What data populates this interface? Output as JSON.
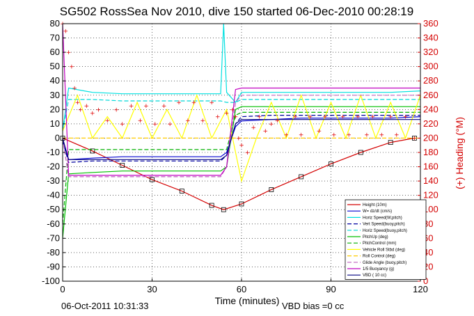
{
  "chart_data": {
    "type": "line",
    "title": "SG502 RossSea Nov 2010, dive 150 started 06-Dec-2010 00:28:19",
    "xlabel": "Time (minutes)",
    "ylabel": "",
    "y2label": "(+) Heading (°M)",
    "xlim": [
      0,
      120
    ],
    "ylim": [
      -100,
      80
    ],
    "y2lim": [
      0,
      360
    ],
    "xticks": [
      "0",
      "30",
      "60",
      "90",
      "120"
    ],
    "yticks": [
      "80",
      "70",
      "60",
      "50",
      "40",
      "30",
      "20",
      "10",
      "0",
      "-10",
      "-20",
      "-30",
      "-40",
      "-50",
      "-60",
      "-70",
      "-80",
      "-90",
      "-100"
    ],
    "y2ticks": [
      "360",
      "340",
      "320",
      "300",
      "280",
      "260",
      "240",
      "220",
      "200",
      "180",
      "160",
      "140",
      "120",
      "100",
      "80",
      "60",
      "40",
      "20",
      "0"
    ],
    "grid": true,
    "legend_position": "bottom-right",
    "footer_left": "06-Oct-2011 10:31:33",
    "footer_right": "VBD bias =0 cc",
    "colors": {
      "height": "#d40000",
      "w": "#0000d0",
      "horiz_speed": "#00e0e0",
      "vert_speed": "#0000a0",
      "horiz_speed_buoy": "#00d8d8",
      "pitch_up": "#00c000",
      "pitch_control": "#00b000",
      "roll_ctrl": "#ffff00",
      "roll_control": "#ffcc00",
      "glide_angle": "#c060c0",
      "buoyancy": "#c000c0",
      "vbd": "#000080",
      "heading": "#e00000"
    },
    "series": [
      {
        "name": "Height (10m)",
        "x": [
          0,
          10,
          20,
          30,
          40,
          50,
          54,
          60,
          70,
          80,
          90,
          100,
          110,
          118
        ],
        "values": [
          0,
          -9,
          -19,
          -29,
          -37,
          -47,
          -50,
          -46,
          -36,
          -27,
          -18,
          -10,
          -3,
          0
        ]
      },
      {
        "name": "W= dz/dt (cm/s)",
        "x": [
          0,
          2,
          10,
          20,
          30,
          40,
          53,
          55,
          58,
          60,
          70,
          80,
          90,
          100,
          110,
          120
        ],
        "values": [
          -2,
          -15,
          -14,
          -13,
          -13,
          -13,
          -13,
          -10,
          8,
          12,
          13,
          14,
          14,
          14,
          14,
          15
        ]
      },
      {
        "name": "Horiz Speed(W,pitch)",
        "x": [
          0,
          2,
          10,
          20,
          30,
          40,
          53,
          54,
          55,
          58,
          60,
          70,
          80,
          90,
          100,
          110,
          120
        ],
        "values": [
          5,
          35,
          32,
          31,
          31,
          31,
          31,
          80,
          32,
          25,
          32,
          32,
          32,
          32,
          32,
          32,
          33
        ]
      },
      {
        "name": "Vert Speed(buoy,pitch)",
        "x": [
          0,
          2,
          10,
          20,
          30,
          40,
          53,
          55,
          58,
          60,
          70,
          80,
          90,
          100,
          110,
          120
        ],
        "values": [
          -2,
          -17,
          -16,
          -16,
          -16,
          -16,
          -16,
          -12,
          10,
          15,
          16,
          16,
          16,
          16,
          16,
          16
        ]
      },
      {
        "name": "Horiz Speed(buoy,pitch)",
        "x": [
          0,
          2,
          10,
          20,
          30,
          40,
          53,
          55,
          58,
          60,
          70,
          80,
          90,
          100,
          110,
          120
        ],
        "values": [
          5,
          27,
          27,
          26,
          26,
          26,
          26,
          25,
          25,
          27,
          27,
          27,
          27,
          27,
          27,
          27
        ]
      },
      {
        "name": "PitchUp (deg)",
        "x": [
          0,
          2,
          10,
          20,
          30,
          40,
          53,
          55,
          58,
          60,
          70,
          80,
          90,
          100,
          110,
          120
        ],
        "values": [
          -70,
          -25,
          -24,
          -23,
          -23,
          -23,
          -23,
          -20,
          20,
          22,
          22,
          22,
          22,
          22,
          22,
          22
        ]
      },
      {
        "name": "PitchControl (mm)",
        "x": [
          0,
          2,
          10,
          20,
          30,
          40,
          53,
          55,
          58,
          60,
          70,
          80,
          90,
          100,
          110,
          120
        ],
        "values": [
          -60,
          -8,
          -8,
          -8,
          -8,
          -8,
          -8,
          -8,
          16,
          18,
          18,
          18,
          18,
          18,
          18,
          18
        ]
      },
      {
        "name": "Vehicle Roll Stbd (deg)",
        "x": [
          0,
          5,
          10,
          15,
          20,
          25,
          30,
          35,
          40,
          45,
          50,
          55,
          60,
          65,
          70,
          75,
          80,
          85,
          90,
          95,
          100,
          105,
          110,
          115,
          120
        ],
        "values": [
          5,
          30,
          0,
          15,
          0,
          25,
          0,
          20,
          0,
          30,
          0,
          20,
          -30,
          0,
          25,
          0,
          30,
          0,
          25,
          0,
          30,
          0,
          25,
          0,
          30
        ]
      },
      {
        "name": "Roll Control (deg)",
        "x": [
          0,
          10,
          20,
          30,
          40,
          50,
          55,
          60,
          70,
          80,
          90,
          100,
          110,
          120
        ],
        "values": [
          0,
          0,
          0,
          0,
          0,
          0,
          0,
          0,
          0,
          0,
          0,
          0,
          0,
          0
        ]
      },
      {
        "name": "Glide Angle (buoy,pitch)",
        "x": [
          0,
          2,
          10,
          20,
          30,
          40,
          53,
          55,
          58,
          60,
          70,
          80,
          90,
          100,
          110,
          120
        ],
        "values": [
          0,
          -27,
          -27,
          -27,
          -27,
          -27,
          -27,
          -20,
          25,
          30,
          30,
          30,
          30,
          30,
          30,
          30
        ]
      },
      {
        "name": "1/5 Buoyancy (g)",
        "x": [
          0,
          2,
          10,
          20,
          30,
          40,
          53,
          55,
          58,
          60,
          70,
          80,
          90,
          100,
          110,
          120
        ],
        "values": [
          80,
          -26,
          -26,
          -26,
          -26,
          -26,
          -26,
          -20,
          34,
          35,
          35,
          35,
          35,
          35,
          35,
          35
        ]
      },
      {
        "name": "VBD ( 10 cc)",
        "x": [
          0,
          2,
          10,
          20,
          30,
          40,
          53,
          55,
          58,
          60,
          70,
          80,
          90,
          100,
          110,
          120
        ],
        "values": [
          0,
          -15,
          -15,
          -15,
          -15,
          -15,
          -15,
          -12,
          10,
          13,
          13,
          13,
          13,
          13,
          13,
          13
        ]
      }
    ],
    "heading_series": {
      "name": "(+) Heading (°M)",
      "x": [
        0,
        1,
        2,
        3,
        4,
        5,
        6,
        8,
        10,
        12,
        15,
        18,
        20,
        23,
        26,
        28,
        31,
        34,
        36,
        39,
        42,
        44,
        47,
        50,
        52,
        55,
        57,
        58,
        59,
        60,
        62,
        64,
        66,
        68,
        70,
        72,
        75,
        78,
        80,
        83,
        86,
        88,
        91,
        94,
        96,
        99,
        102,
        104,
        107,
        110,
        112,
        115,
        118
      ],
      "values": [
        360,
        350,
        320,
        300,
        270,
        250,
        240,
        245,
        235,
        240,
        225,
        240,
        220,
        245,
        225,
        245,
        220,
        245,
        220,
        250,
        225,
        250,
        225,
        250,
        230,
        235,
        240,
        230,
        200,
        190,
        180,
        215,
        230,
        210,
        220,
        225,
        205,
        230,
        205,
        230,
        210,
        230,
        205,
        230,
        205,
        230,
        205,
        230,
        205,
        230,
        205,
        230,
        200
      ]
    }
  }
}
